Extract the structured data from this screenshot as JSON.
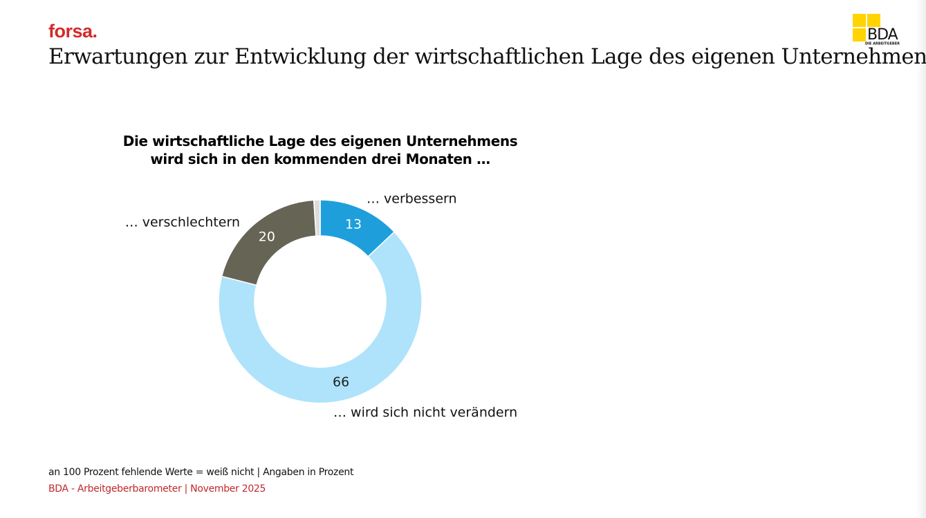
{
  "brand": {
    "forsa": "forsa.",
    "bda": "BDA",
    "bda_sub": "DIE ARBEITGEBER"
  },
  "title": "Erwartungen zur Entwicklung der wirtschaftlichen Lage des eigenen Unternehmens",
  "chart_data": {
    "type": "donut",
    "title": "Die wirtschaftliche Lage des eigenen Unternehmens wird sich in den kommenden drei Monaten …",
    "categories": [
      "… verbessern",
      "… wird sich nicht verändern",
      "… verschlechtern",
      null
    ],
    "values": [
      13,
      66,
      20,
      1
    ],
    "colors": [
      "#1e9fdc",
      "#aee3fb",
      "#666455",
      "#dcdcdc"
    ]
  },
  "footnote": "an 100 Prozent fehlende Werte = weiß nicht | Angaben in Prozent",
  "source": "BDA - Arbeitgeberbarometer | November 2025"
}
